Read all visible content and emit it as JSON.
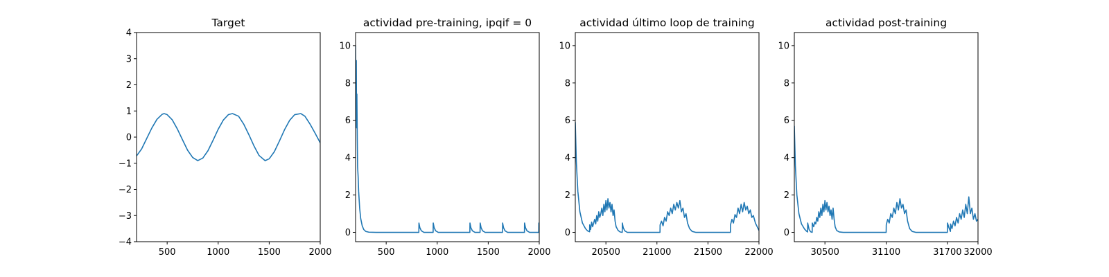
{
  "chart_data": [
    {
      "type": "line",
      "title": "Target",
      "xlim": [
        200,
        2000
      ],
      "ylim": [
        -4,
        4
      ],
      "xticks": [
        500,
        1000,
        1500,
        2000
      ],
      "yticks": [
        -4,
        -3,
        -2,
        -1,
        0,
        1,
        2,
        3,
        4
      ],
      "series": [
        {
          "x": [
            200,
            250,
            300,
            350,
            400,
            450,
            470,
            500,
            550,
            600,
            650,
            700,
            750,
            800,
            850,
            900,
            950,
            1000,
            1050,
            1100,
            1140,
            1200,
            1250,
            1300,
            1350,
            1400,
            1460,
            1500,
            1550,
            1600,
            1650,
            1700,
            1750,
            1810,
            1850,
            1900,
            1950,
            2000
          ],
          "y": [
            -0.72,
            -0.45,
            -0.05,
            0.35,
            0.68,
            0.87,
            0.9,
            0.86,
            0.66,
            0.31,
            -0.1,
            -0.5,
            -0.78,
            -0.9,
            -0.8,
            -0.52,
            -0.12,
            0.3,
            0.65,
            0.86,
            0.9,
            0.8,
            0.5,
            0.1,
            -0.33,
            -0.7,
            -0.9,
            -0.83,
            -0.56,
            -0.15,
            0.28,
            0.64,
            0.86,
            0.9,
            0.8,
            0.5,
            0.15,
            -0.22
          ]
        }
      ]
    },
    {
      "type": "line",
      "title": "actividad pre-training, ipqif = 0",
      "xlim": [
        200,
        2000
      ],
      "ylim": [
        -0.5,
        10.7
      ],
      "xticks": [
        500,
        1000,
        1500,
        2000
      ],
      "yticks": [
        0,
        2,
        4,
        6,
        8,
        10
      ],
      "series": [
        {
          "x": [
            200,
            203,
            207,
            210,
            213,
            217,
            220,
            225,
            230,
            240,
            250,
            265,
            280,
            300,
            330,
            400,
            820,
            821,
            830,
            845,
            870,
            960,
            961,
            970,
            985,
            1010,
            1320,
            1321,
            1330,
            1345,
            1370,
            1420,
            1421,
            1430,
            1445,
            1470,
            1640,
            1641,
            1650,
            1665,
            1690,
            1855,
            1856,
            1865,
            1880,
            1905,
            1995,
            1996,
            2000
          ],
          "y": [
            10.0,
            7.0,
            9.2,
            5.6,
            7.4,
            4.9,
            3.5,
            3.0,
            2.2,
            1.3,
            0.75,
            0.35,
            0.15,
            0.05,
            0.01,
            0,
            0,
            0.5,
            0.25,
            0.08,
            0,
            0,
            0.5,
            0.25,
            0.08,
            0,
            0,
            0.5,
            0.25,
            0.08,
            0,
            0,
            0.5,
            0.25,
            0.08,
            0,
            0,
            0.5,
            0.25,
            0.08,
            0,
            0,
            0.5,
            0.25,
            0.08,
            0,
            0,
            0.5,
            0.3
          ]
        }
      ]
    },
    {
      "type": "line",
      "title": "actividad último loop de training",
      "xlim": [
        20200,
        22000
      ],
      "ylim": [
        -0.5,
        10.7
      ],
      "xticks": [
        20500,
        21000,
        21500,
        22000
      ],
      "yticks": [
        0,
        2,
        4,
        6,
        8,
        10
      ],
      "series": [
        {
          "x": [
            20200,
            20210,
            20225,
            20245,
            20270,
            20300,
            20320,
            20340,
            20341,
            20350,
            20360,
            20370,
            20380,
            20390,
            20400,
            20410,
            20420,
            20430,
            20440,
            20450,
            20460,
            20470,
            20480,
            20490,
            20500,
            20510,
            20520,
            20530,
            20540,
            20550,
            20560,
            20570,
            20580,
            20590,
            20600,
            20620,
            20640,
            20660,
            20661,
            20670,
            20685,
            20710,
            21030,
            21031,
            21045,
            21060,
            21075,
            21090,
            21105,
            21120,
            21135,
            21150,
            21165,
            21180,
            21195,
            21210,
            21225,
            21240,
            21255,
            21270,
            21285,
            21300,
            21320,
            21345,
            21380,
            21720,
            21721,
            21735,
            21750,
            21765,
            21780,
            21795,
            21810,
            21825,
            21840,
            21855,
            21870,
            21885,
            21900,
            21915,
            21930,
            21945,
            21965,
            22000
          ],
          "y": [
            5.9,
            3.8,
            2.2,
            1.1,
            0.5,
            0.2,
            0.08,
            0.03,
            0.4,
            0.15,
            0.55,
            0.3,
            0.5,
            0.7,
            0.45,
            0.9,
            0.6,
            1.1,
            0.8,
            1.0,
            1.3,
            0.9,
            1.5,
            1.1,
            1.7,
            1.2,
            1.8,
            1.3,
            1.6,
            1.1,
            1.5,
            0.9,
            1.2,
            0.6,
            0.3,
            0.1,
            0.02,
            0,
            0.5,
            0.25,
            0.08,
            0,
            0,
            0.4,
            0.6,
            0.35,
            0.8,
            0.6,
            1.1,
            0.9,
            1.3,
            1.0,
            1.5,
            1.2,
            1.6,
            1.3,
            1.7,
            1.1,
            1.3,
            0.8,
            1.0,
            0.5,
            0.2,
            0.05,
            0,
            0,
            0.4,
            0.7,
            0.5,
            0.95,
            0.8,
            1.3,
            1.0,
            1.5,
            1.1,
            1.6,
            1.2,
            1.4,
            1.0,
            1.2,
            0.8,
            0.9,
            0.5,
            0.1
          ]
        }
      ]
    },
    {
      "type": "line",
      "title": "actividad post-training",
      "xlim": [
        30200,
        32000
      ],
      "ylim": [
        -0.5,
        10.7
      ],
      "xticks": [
        30500,
        31100,
        31700,
        32000
      ],
      "yticks": [
        0,
        2,
        4,
        6,
        8,
        10
      ],
      "series": [
        {
          "x": [
            30200,
            30210,
            30225,
            30245,
            30270,
            30300,
            30320,
            30330,
            30331,
            30345,
            30360,
            30375,
            30376,
            30390,
            30400,
            30410,
            30420,
            30430,
            30440,
            30450,
            30460,
            30470,
            30480,
            30490,
            30500,
            30510,
            30520,
            30530,
            30540,
            30550,
            30560,
            30570,
            30580,
            30590,
            30600,
            30615,
            30640,
            30680,
            31100,
            31101,
            31115,
            31130,
            31145,
            31160,
            31175,
            31190,
            31205,
            31220,
            31235,
            31250,
            31265,
            31280,
            31295,
            31310,
            31330,
            31355,
            31390,
            31700,
            31701,
            31715,
            31730,
            31731,
            31745,
            31760,
            31775,
            31790,
            31805,
            31820,
            31835,
            31850,
            31865,
            31880,
            31895,
            31910,
            31925,
            31940,
            31955,
            31970,
            31985,
            32000
          ],
          "y": [
            5.7,
            3.6,
            2.0,
            1.0,
            0.45,
            0.18,
            0.06,
            0.02,
            0.5,
            0.15,
            0.03,
            0,
            0.5,
            0.3,
            0.55,
            0.45,
            0.8,
            0.6,
            1.1,
            0.8,
            1.3,
            0.9,
            1.5,
            1.1,
            1.7,
            1.2,
            1.6,
            1.1,
            1.4,
            0.9,
            1.2,
            0.7,
            1.3,
            0.7,
            0.3,
            0.1,
            0.02,
            0,
            0,
            0.4,
            0.7,
            0.5,
            1.0,
            0.8,
            1.3,
            1.0,
            1.6,
            1.2,
            1.8,
            1.3,
            1.5,
            1.0,
            1.2,
            0.6,
            0.2,
            0.05,
            0,
            0,
            0.5,
            0.25,
            0.05,
            0.45,
            0.2,
            0.6,
            0.35,
            0.8,
            0.5,
            1.0,
            0.7,
            1.2,
            0.8,
            1.5,
            1.0,
            1.9,
            1.0,
            1.3,
            0.7,
            1.0,
            0.6,
            0.7
          ]
        }
      ]
    }
  ]
}
